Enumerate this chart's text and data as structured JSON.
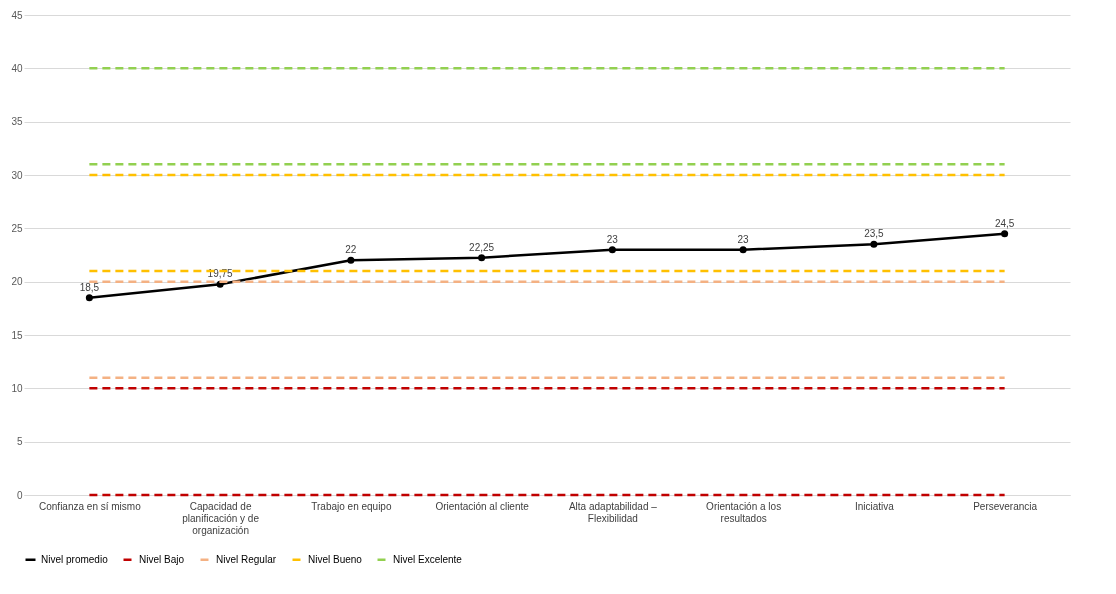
{
  "chart_data": {
    "type": "line",
    "categories": [
      "Confianza en sí mismo",
      "Capacidad de planificación y de organización",
      "Trabajo en equipo",
      "Orientación al cliente",
      "Alta adaptabilidad – Flexibilidad",
      "Orientación a los resultados",
      "Iniciativa",
      "Perseverancia"
    ],
    "series": [
      {
        "name": "Nivel promedio",
        "color": "#000000",
        "values": [
          18.5,
          19.75,
          22,
          22.25,
          23,
          23,
          23.5,
          24.5
        ],
        "value_labels": [
          "18,5",
          "19,75",
          "22",
          "22,25",
          "23",
          "23",
          "23,5",
          "24,5"
        ],
        "marker": "circle",
        "line_style": "solid"
      },
      {
        "name": "Nivel Bajo",
        "color": "#c00000",
        "values": [
          0,
          0,
          0,
          0,
          0,
          0,
          0,
          0
        ],
        "line_style": "dashed"
      },
      {
        "color": "#c00000",
        "values": [
          10,
          10,
          10,
          10,
          10,
          10,
          10,
          10
        ],
        "line_style": "dashed"
      },
      {
        "name": "Nivel Regular",
        "color": "#f4b183",
        "values": [
          11,
          11,
          11,
          11,
          11,
          11,
          11,
          11
        ],
        "line_style": "dashed"
      },
      {
        "color": "#f4b183",
        "values": [
          20,
          20,
          20,
          20,
          20,
          20,
          20,
          20
        ],
        "line_style": "dashed"
      },
      {
        "name": "Nivel Bueno",
        "color": "#ffc000",
        "values": [
          21,
          21,
          21,
          21,
          21,
          21,
          21,
          21
        ],
        "line_style": "dashed"
      },
      {
        "color": "#ffc000",
        "values": [
          30,
          30,
          30,
          30,
          30,
          30,
          30,
          30
        ],
        "line_style": "dashed"
      },
      {
        "name": "Nivel Excelente",
        "color": "#92d050",
        "values": [
          31,
          31,
          31,
          31,
          31,
          31,
          31,
          31
        ],
        "line_style": "dashed"
      },
      {
        "color": "#92d050",
        "values": [
          40,
          40,
          40,
          40,
          40,
          40,
          40,
          40
        ],
        "line_style": "dashed"
      }
    ],
    "ylim": [
      0,
      45
    ],
    "yticks": [
      0,
      5,
      10,
      15,
      20,
      25,
      30,
      35,
      40,
      45
    ],
    "grid": "y",
    "legend": "bottom"
  }
}
